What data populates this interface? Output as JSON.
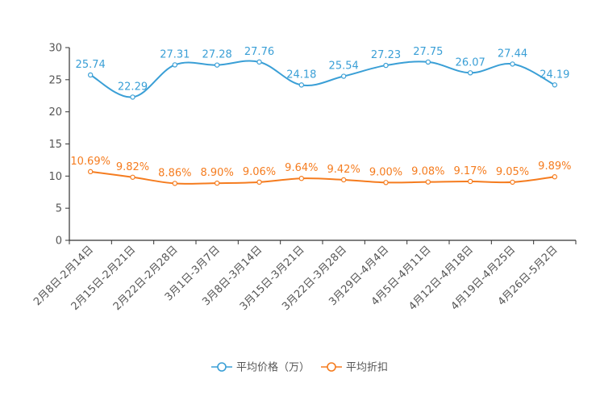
{
  "chart_data": {
    "type": "line",
    "categories": [
      "2月8日-2月14日",
      "2月15日-2月21日",
      "2月22日-2月28日",
      "3月1日-3月7日",
      "3月8日-3月14日",
      "3月15日-3月21日",
      "3月22日-3月28日",
      "3月29日-4月4日",
      "4月5日-4月11日",
      "4月12日-4月18日",
      "4月19日-4月25日",
      "4月26日-5月2日"
    ],
    "series": [
      {
        "name": "平均价格（万）",
        "color": "#3a9fd6",
        "values": [
          25.74,
          22.29,
          27.31,
          27.28,
          27.76,
          24.18,
          25.54,
          27.23,
          27.75,
          26.07,
          27.44,
          24.19
        ],
        "labels": [
          "25.74",
          "22.29",
          "27.31",
          "27.28",
          "27.76",
          "24.18",
          "25.54",
          "27.23",
          "27.75",
          "26.07",
          "27.44",
          "24.19"
        ]
      },
      {
        "name": "平均折扣",
        "color": "#f57c1f",
        "values": [
          10.69,
          9.82,
          8.86,
          8.9,
          9.06,
          9.64,
          9.42,
          9.0,
          9.08,
          9.17,
          9.05,
          9.89
        ],
        "labels": [
          "10.69%",
          "9.82%",
          "8.86%",
          "8.90%",
          "9.06%",
          "9.64%",
          "9.42%",
          "9.00%",
          "9.08%",
          "9.17%",
          "9.05%",
          "9.89%"
        ]
      }
    ],
    "y_ticks": [
      "0",
      "5",
      "10",
      "15",
      "20",
      "25",
      "30"
    ],
    "ylim": [
      0,
      30
    ],
    "title": "",
    "xlabel": "",
    "ylabel": "",
    "legend_position": "bottom-center",
    "axis_color": "#333333"
  }
}
